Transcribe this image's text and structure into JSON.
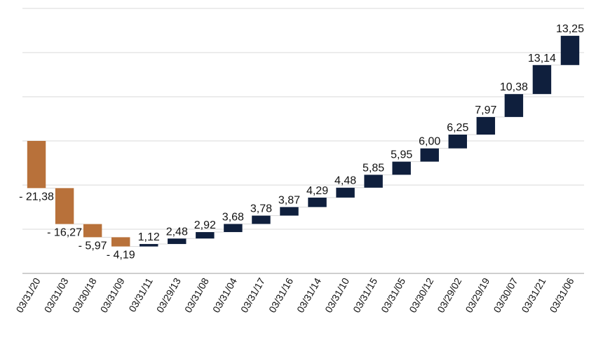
{
  "chart_data": {
    "type": "waterfall",
    "categories": [
      "03/31/20",
      "03/31/03",
      "03/30/18",
      "03/31/09",
      "03/31/11",
      "03/29/13",
      "03/31/08",
      "03/31/04",
      "03/31/17",
      "03/31/16",
      "03/31/14",
      "03/31/10",
      "03/31/15",
      "03/31/05",
      "03/30/12",
      "03/29/02",
      "03/29/19",
      "03/30/07",
      "03/31/21",
      "03/31/06"
    ],
    "values": [
      -21.38,
      -16.27,
      -5.97,
      -4.19,
      1.12,
      2.48,
      2.92,
      3.68,
      3.78,
      3.87,
      4.29,
      4.48,
      5.85,
      5.95,
      6.0,
      6.25,
      7.97,
      10.38,
      13.14,
      13.25
    ],
    "labels": [
      "- 21,38",
      "- 16,27",
      "- 5,97",
      "- 4,19",
      "1,12",
      "2,48",
      "2,92",
      "3,68",
      "3,78",
      "3,87",
      "4,29",
      "4,48",
      "5,85",
      "5,95",
      "6,00",
      "6,25",
      "7,97",
      "10,38",
      "13,14",
      "13,25"
    ],
    "ylim": [
      -60,
      60
    ],
    "grid": true,
    "colors": {
      "negative": "#B8713A",
      "positive": "#0F1F3D",
      "grid": "#D9D9D9",
      "axis": "#BFBFBF"
    }
  }
}
